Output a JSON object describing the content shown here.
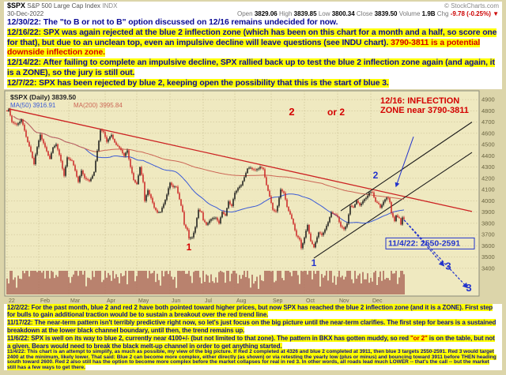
{
  "ticker": {
    "symbol": "$SPX",
    "name": "S&P 500 Large Cap Index",
    "exchange": "INDX",
    "copyright": "© StockCharts.com",
    "date": "30-Dec-2022",
    "open_label": "Open",
    "open": "3829.06",
    "high_label": "High",
    "high": "3839.85",
    "low_label": "Low",
    "low": "3800.34",
    "close_label": "Close",
    "close": "3839.50",
    "volume_label": "Volume",
    "volume": "1.9B",
    "chg_label": "Chg",
    "chg": "-9.78 (-0.25%) ▼"
  },
  "notes": {
    "n1230": {
      "date": "12/30/22:",
      "text": " The \"to B or not to B\" option discussed on 12/16 remains undecided for now."
    },
    "n1216": {
      "date": "12/16/22:",
      "text": " SPX was again rejected at the blue 2 inflection zone (which has been on this chart for a month and a half, so score one for that), but due to an unclean top, even an impulsive decline will leave questions (see INDU chart). ",
      "red": "3790-3811 is a potential downside inflection zone."
    },
    "n1214": {
      "date": "12/14/22:",
      "text": " After failing to complete an impulsive decline, SPX rallied back up to test the blue 2 inflection zone again (and again, it is a ZONE), so the jury is still out."
    },
    "n127": {
      "date": "12/7/22:",
      "text": " SPX has been rejected by blue 2, keeping open the possibility that this is the start of blue 3."
    },
    "n122": {
      "date": "12/2/22:",
      "text": " For the past month, blue 2 and red 2 have both pointed toward higher prices, but now SPX has reached the blue 2 inflection zone (and it is a ZONE).  First step for bulls to gain additional traction would be to sustain a breakout over the red trend line."
    },
    "n1117": {
      "date": "11/17/22:",
      "text": " The near-term pattern isn't terribly predictive right now, so let's just focus on the big picture until the near-term clarifies.  The first step for bears is a sustained breakdown at the lower black channel boundary, until then, the trend remains up."
    },
    "n116": {
      "date": "11/6/22:",
      "pre": " SPX is well on its way to blue 2, currently near 4100+/- (but not limited to that zone).  The pattern in BKX has gotten muddy, so red ",
      "red": "\"or 2\"",
      "post": " is on the table, but not a given.  Bears would need to break the black melt-up channel in order to get anything started."
    },
    "n114": {
      "date": "11/4/22:",
      "text": " This chart is an attempt to simplify, as much as possible, my view of the big picture.  If Red 2 completed at 4326 and blue 2 completed at 3911, then blue 3 targets 2550-2591.  Red 3 would target 2400 at the minimum, likely lower.  That said:  Blue 2 can become more complex, either directly (as shown) or via retesting the yearly low (plus or minus) and bouncing toward 3911 before THEN heading south toward 2600.  Red 2 also still has the option to become more complex before the market collapses for real in red 3.  In other words, all roads lead much LOWER -- that's the call -- but the market still has a few ways to get there."
    }
  },
  "chart_data": {
    "type": "candlestick",
    "title": "$SPX (Daily)",
    "legend": {
      "symbol_line": "$SPX (Daily) 3839.50",
      "ma50": "MA(50) 3916.91",
      "ma200": "MA(200) 3995.84"
    },
    "x_axis_months": [
      "22",
      "Feb",
      "Mar",
      "Apr",
      "May",
      "Jun",
      "Jul",
      "Aug",
      "Sep",
      "Oct",
      "Nov",
      "Dec"
    ],
    "month_start_days": [
      0,
      20,
      39,
      62,
      82,
      103,
      124,
      144,
      167,
      188,
      209,
      230
    ],
    "total_days": 294,
    "last_day": 251,
    "ylim": [
      3350,
      4950
    ],
    "y_ticks": [
      3400,
      3500,
      3600,
      3700,
      3800,
      3900,
      4000,
      4100,
      4200,
      4300,
      4400,
      4500,
      4600,
      4700,
      4800,
      4900
    ],
    "price_anchors": [
      [
        0,
        4796
      ],
      [
        1,
        4805
      ],
      [
        3,
        4700
      ],
      [
        6,
        4670
      ],
      [
        9,
        4726
      ],
      [
        12,
        4577
      ],
      [
        14,
        4483
      ],
      [
        17,
        4326
      ],
      [
        18,
        4410
      ],
      [
        21,
        4589
      ],
      [
        24,
        4477
      ],
      [
        27,
        4380
      ],
      [
        29,
        4471
      ],
      [
        31,
        4504
      ],
      [
        34,
        4348
      ],
      [
        36,
        4225
      ],
      [
        38,
        4384
      ],
      [
        41,
        4363
      ],
      [
        45,
        4170
      ],
      [
        47,
        4259
      ],
      [
        49,
        4204
      ],
      [
        52,
        4173
      ],
      [
        55,
        4262
      ],
      [
        59,
        4631
      ],
      [
        61,
        4602
      ],
      [
        63,
        4525
      ],
      [
        66,
        4583
      ],
      [
        69,
        4500
      ],
      [
        72,
        4459
      ],
      [
        74,
        4393
      ],
      [
        76,
        4446
      ],
      [
        78,
        4296
      ],
      [
        80,
        4183
      ],
      [
        82,
        4155
      ],
      [
        84,
        4300
      ],
      [
        86,
        4175
      ],
      [
        87,
        4001
      ],
      [
        89,
        4088
      ],
      [
        91,
        4024
      ],
      [
        93,
        3930
      ],
      [
        95,
        3900
      ],
      [
        97,
        3901
      ],
      [
        99,
        3978
      ],
      [
        101,
        4057
      ],
      [
        103,
        4158
      ],
      [
        105,
        4121
      ],
      [
        107,
        4116
      ],
      [
        109,
        4017
      ],
      [
        111,
        3900
      ],
      [
        112,
        3790
      ],
      [
        114,
        3750
      ],
      [
        115,
        3667
      ],
      [
        117,
        3675
      ],
      [
        119,
        3764
      ],
      [
        121,
        3912
      ],
      [
        123,
        3900
      ],
      [
        124,
        3825
      ],
      [
        126,
        3790
      ],
      [
        128,
        3831
      ],
      [
        130,
        3845
      ],
      [
        132,
        3854
      ],
      [
        134,
        3790
      ],
      [
        136,
        3902
      ],
      [
        138,
        3864
      ],
      [
        140,
        3998
      ],
      [
        142,
        3960
      ],
      [
        144,
        4072
      ],
      [
        146,
        4118
      ],
      [
        148,
        4130
      ],
      [
        150,
        4210
      ],
      [
        152,
        4280
      ],
      [
        154,
        4297
      ],
      [
        157,
        4274
      ],
      [
        160,
        4305
      ],
      [
        162,
        4274
      ],
      [
        164,
        4140
      ],
      [
        166,
        4030
      ],
      [
        168,
        3924
      ],
      [
        170,
        3908
      ],
      [
        171,
        3955
      ],
      [
        173,
        4110
      ],
      [
        175,
        4067
      ],
      [
        177,
        3946
      ],
      [
        179,
        3873
      ],
      [
        181,
        3790
      ],
      [
        183,
        3693
      ],
      [
        185,
        3655
      ],
      [
        186,
        3586
      ],
      [
        188,
        3678
      ],
      [
        190,
        3783
      ],
      [
        192,
        3640
      ],
      [
        194,
        3577
      ],
      [
        196,
        3678
      ],
      [
        197,
        3720
      ],
      [
        199,
        3696
      ],
      [
        201,
        3754
      ],
      [
        203,
        3808
      ],
      [
        205,
        3901
      ],
      [
        207,
        3871
      ],
      [
        209,
        3856
      ],
      [
        211,
        3770
      ],
      [
        213,
        3748
      ],
      [
        215,
        3806
      ],
      [
        217,
        3956
      ],
      [
        219,
        3946
      ],
      [
        221,
        3992
      ],
      [
        223,
        3958
      ],
      [
        225,
        3992
      ],
      [
        227,
        4027
      ],
      [
        229,
        4080
      ],
      [
        231,
        4076
      ],
      [
        233,
        3998
      ],
      [
        235,
        3964
      ],
      [
        236,
        3934
      ],
      [
        238,
        3990
      ],
      [
        240,
        4020
      ],
      [
        241,
        4025
      ],
      [
        242,
        3995
      ],
      [
        243,
        3895
      ],
      [
        245,
        3822
      ],
      [
        246,
        3878
      ],
      [
        248,
        3845
      ],
      [
        249,
        3783
      ],
      [
        250,
        3849
      ],
      [
        251,
        3839
      ]
    ],
    "trendline_red": {
      "from": [
        1,
        4818
      ],
      "to": [
        294,
        3905
      ],
      "color": "#cc2222"
    },
    "channel_black": [
      {
        "from": [
          194,
          3491
        ],
        "to": [
          294,
          4430
        ]
      },
      {
        "from": [
          211,
          3911
        ],
        "to": [
          294,
          4700
        ]
      }
    ],
    "projections": [
      {
        "from": [
          251,
          3830
        ],
        "to": [
          276,
          3425
        ]
      },
      {
        "from": [
          251,
          3830
        ],
        "to": [
          291,
          3230
        ]
      }
    ],
    "callout_arrow": {
      "from": [
        257,
        4570
      ],
      "to": [
        246,
        4130
      ]
    },
    "wave_labels": [
      {
        "text": "2",
        "color": "#d40000",
        "day": 180,
        "price": 4760,
        "size": 13
      },
      {
        "text": "or 2",
        "color": "#d40000",
        "day": 208,
        "price": 4760,
        "size": 12
      },
      {
        "text": "2",
        "color": "#2233cc",
        "day": 233,
        "price": 4200,
        "size": 12
      },
      {
        "text": "1",
        "color": "#d40000",
        "day": 115,
        "price": 3560,
        "size": 12
      },
      {
        "text": "1",
        "color": "#2233cc",
        "day": 194,
        "price": 3420,
        "size": 12
      },
      {
        "text": "3",
        "color": "#2233cc",
        "day": 279,
        "price": 3390,
        "size": 13
      },
      {
        "text": "3",
        "color": "#2233cc",
        "day": 292,
        "price": 3195,
        "size": 13
      }
    ],
    "inflection_note": {
      "lines": [
        "12/16: INFLECTION",
        "ZONE near 3790-3811"
      ],
      "day": 236,
      "price": 4865,
      "color": "#d40000"
    },
    "target_note": {
      "text": "11/4/22: 2550-2591",
      "day": 241,
      "price": 3600,
      "color": "#2233cc"
    },
    "colors": {
      "up": "#151515",
      "down": "#cc2222",
      "ma50": "#3b5bd6",
      "ma200": "#cc6655",
      "volume": "#a05248",
      "grid": "#c4b98a",
      "plot_bg": "#efe9c0",
      "axis_text": "#6b6542"
    }
  }
}
